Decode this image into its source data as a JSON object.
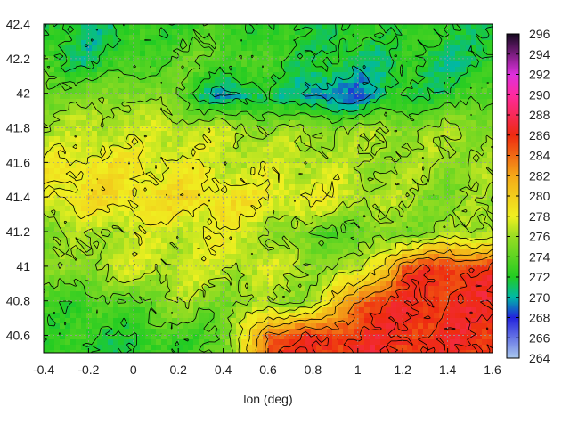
{
  "chart_data": {
    "type": "heatmap",
    "title": "",
    "xlabel": "lon (deg)",
    "ylabel": "",
    "xlim": [
      -0.4,
      1.6
    ],
    "ylim": [
      40.5,
      42.4
    ],
    "x_ticks": [
      "-0.4",
      "-0.2",
      "0",
      "0.2",
      "0.4",
      "0.6",
      "0.8",
      "1",
      "1.2",
      "1.4",
      "1.6"
    ],
    "y_ticks": [
      "40.6",
      "40.8",
      "41",
      "41.2",
      "41.4",
      "41.6",
      "41.8",
      "42",
      "42.2",
      "42.4"
    ],
    "colorbar": {
      "range": [
        264,
        296
      ],
      "ticks": [
        "264",
        "266",
        "268",
        "270",
        "272",
        "274",
        "276",
        "278",
        "280",
        "282",
        "284",
        "286",
        "288",
        "290",
        "292",
        "294",
        "296"
      ],
      "colormap": [
        {
          "value": 264,
          "color": "#aac8ee"
        },
        {
          "value": 268,
          "color": "#2222dd"
        },
        {
          "value": 270,
          "color": "#00b8a8"
        },
        {
          "value": 272,
          "color": "#22cc22"
        },
        {
          "value": 276,
          "color": "#99dd22"
        },
        {
          "value": 278,
          "color": "#f0f020"
        },
        {
          "value": 282,
          "color": "#f4a818"
        },
        {
          "value": 286,
          "color": "#ee2a10"
        },
        {
          "value": 290,
          "color": "#ff2aa0"
        },
        {
          "value": 292,
          "color": "#dd30dd"
        },
        {
          "value": 296,
          "color": "#160a20"
        }
      ]
    },
    "grid": true,
    "gridlines": "dashed",
    "contours": true,
    "field_samples": {
      "lon": [
        -0.4,
        -0.2,
        0.0,
        0.2,
        0.4,
        0.6,
        0.8,
        1.0,
        1.2,
        1.4,
        1.6
      ],
      "lat": [
        42.4,
        42.2,
        42.0,
        41.8,
        41.6,
        41.4,
        41.2,
        41.0,
        40.8,
        40.6
      ],
      "values": [
        [
          272,
          271,
          272,
          273,
          273,
          272,
          272,
          272,
          273,
          272,
          272
        ],
        [
          273,
          271,
          273,
          274,
          274,
          273,
          272,
          271,
          272,
          271,
          272
        ],
        [
          275,
          275,
          276,
          274,
          269,
          272,
          269,
          269,
          272,
          272,
          274
        ],
        [
          276,
          277,
          277,
          277,
          277,
          276,
          276,
          276,
          276,
          276,
          276
        ],
        [
          278,
          279,
          278,
          278,
          277,
          277,
          277,
          276,
          276,
          276,
          276
        ],
        [
          278,
          279,
          279,
          279,
          279,
          278,
          278,
          277,
          276,
          275,
          276
        ],
        [
          275,
          276,
          277,
          277,
          278,
          276,
          274,
          274,
          275,
          276,
          277
        ],
        [
          275,
          276,
          277,
          277,
          277,
          277,
          276,
          276,
          285,
          286,
          286
        ],
        [
          273,
          273,
          274,
          276,
          275,
          276,
          276,
          285,
          286,
          286,
          286
        ],
        [
          273,
          272,
          272,
          273,
          274,
          285,
          286,
          286,
          286,
          286,
          286
        ]
      ]
    }
  }
}
